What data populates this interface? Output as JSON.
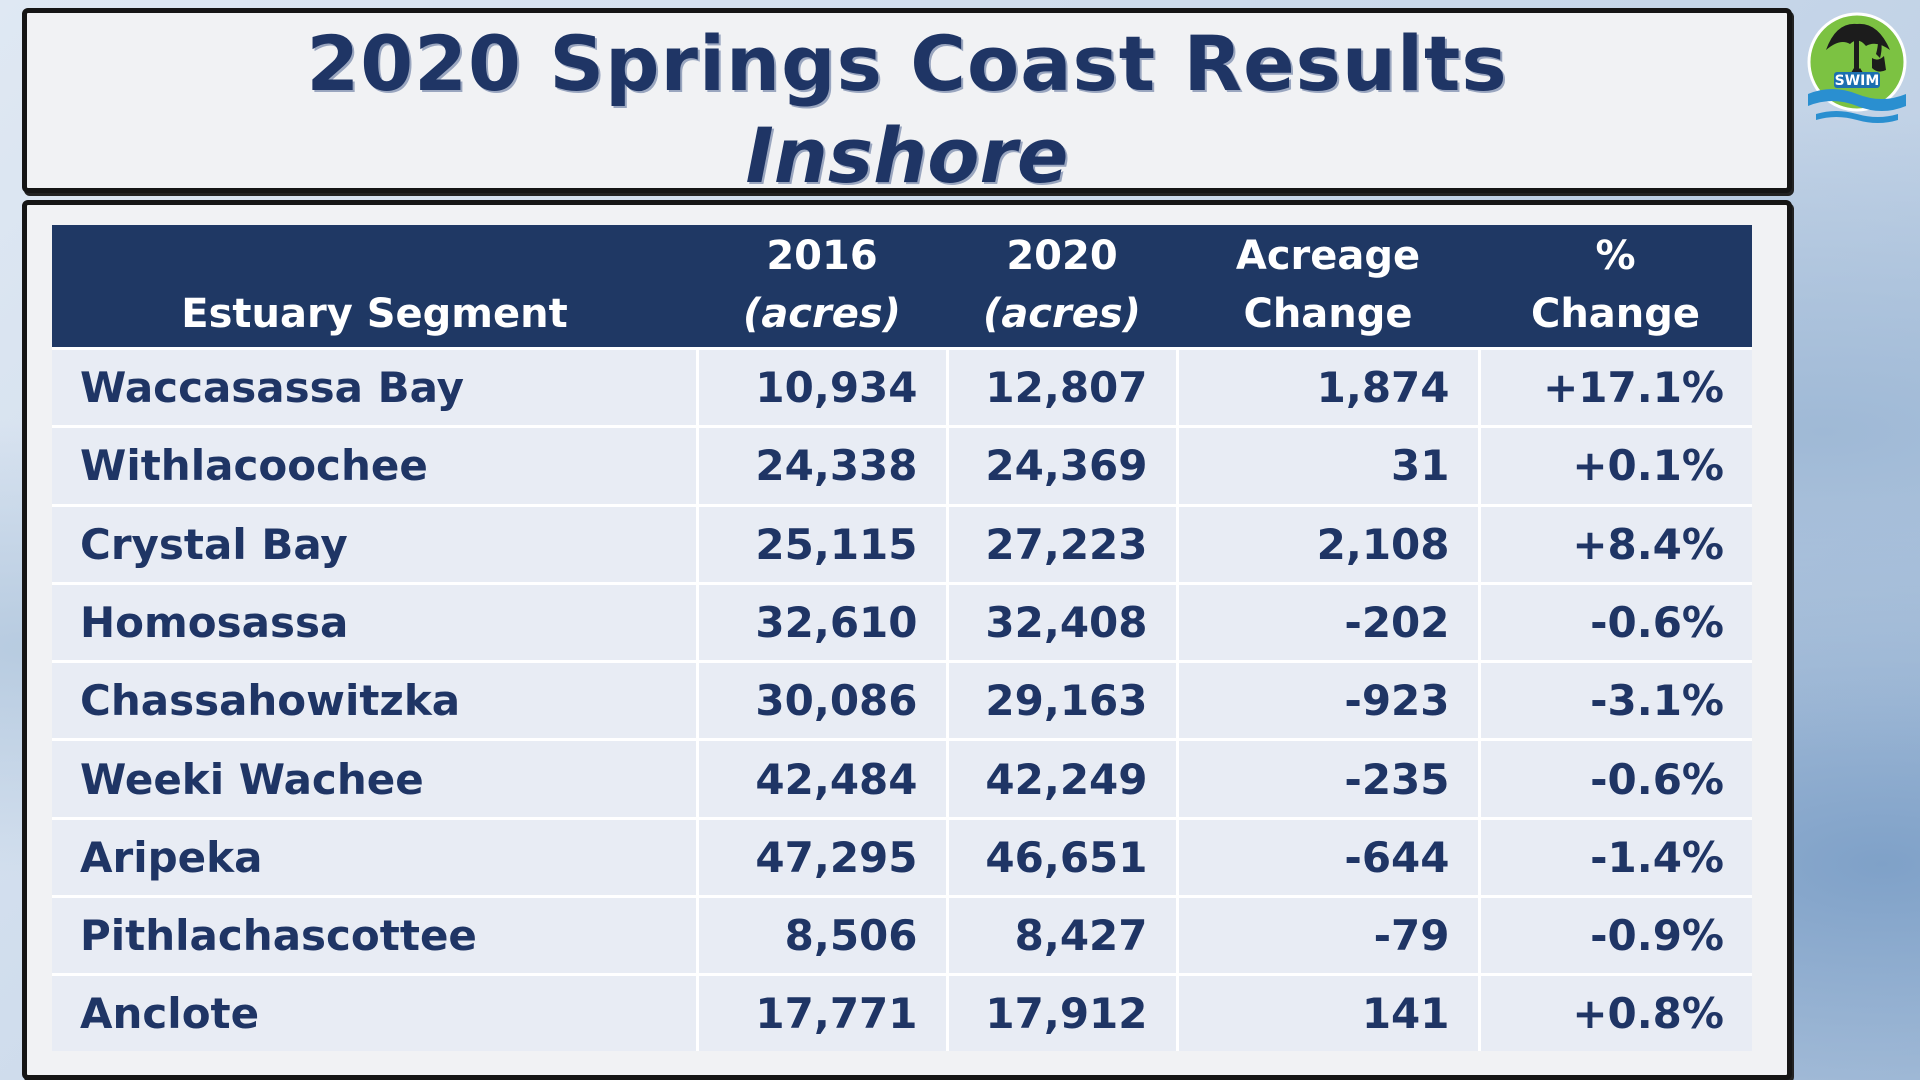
{
  "title": {
    "line1": "2020 Springs Coast Results",
    "line2": "Inshore"
  },
  "logo": {
    "text": "SWIM",
    "icon": "heron-mangrove-logo-icon",
    "colors": {
      "green": "#7cc242",
      "blue": "#2a8fd0",
      "dark": "#1c1c1c"
    }
  },
  "table": {
    "headers": {
      "segment": "Estuary Segment",
      "y2016_top": "2016",
      "y2016_sub": "(acres)",
      "y2020_top": "2020",
      "y2020_sub": "(acres)",
      "change_top": "Acreage",
      "change_sub": "Change",
      "pct": "% Change"
    },
    "rows": [
      {
        "segment": "Waccasassa Bay",
        "a2016": "10,934",
        "a2020": "12,807",
        "change": "1,874",
        "pct": "+17.1%"
      },
      {
        "segment": "Withlacoochee",
        "a2016": "24,338",
        "a2020": "24,369",
        "change": "31",
        "pct": "+0.1%"
      },
      {
        "segment": "Crystal Bay",
        "a2016": "25,115",
        "a2020": "27,223",
        "change": "2,108",
        "pct": "+8.4%"
      },
      {
        "segment": "Homosassa",
        "a2016": "32,610",
        "a2020": "32,408",
        "change": "-202",
        "pct": "-0.6%"
      },
      {
        "segment": "Chassahowitzka",
        "a2016": "30,086",
        "a2020": "29,163",
        "change": "-923",
        "pct": "-3.1%"
      },
      {
        "segment": "Weeki Wachee",
        "a2016": "42,484",
        "a2020": "42,249",
        "change": "-235",
        "pct": "-0.6%"
      },
      {
        "segment": "Aripeka",
        "a2016": "47,295",
        "a2020": "46,651",
        "change": "-644",
        "pct": "-1.4%"
      },
      {
        "segment": "Pithlachascottee",
        "a2016": "8,506",
        "a2020": "8,427",
        "change": "-79",
        "pct": "-0.9%"
      },
      {
        "segment": "Anclote",
        "a2016": "17,771",
        "a2020": "17,912",
        "change": "141",
        "pct": "+0.8%"
      }
    ]
  },
  "colors": {
    "header_bg": "#1f3864",
    "text": "#1f3565",
    "row_bg": "#e8ecf4"
  }
}
